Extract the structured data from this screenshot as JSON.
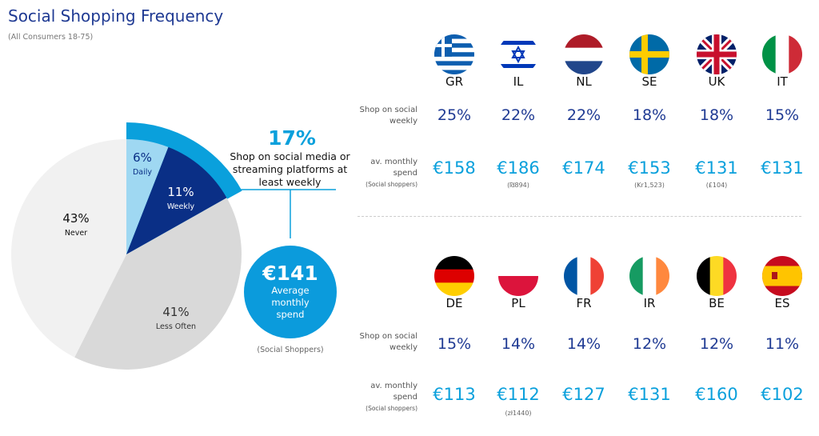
{
  "header": {
    "title": "Social Shopping Frequency",
    "subtitle": "(All Consumers 18-75)"
  },
  "chart_data": {
    "type": "pie",
    "title": "Social Shopping Frequency",
    "slices": [
      {
        "label": "Daily",
        "value": 6,
        "text": "6%",
        "color": "#9fd8f2"
      },
      {
        "label": "Weekly",
        "value": 11,
        "text": "11%",
        "color": "#0a2f86"
      },
      {
        "label": "Less Often",
        "value": 41,
        "text": "41%",
        "color": "#d9d9d9"
      },
      {
        "label": "Never",
        "value": 43,
        "text": "43%",
        "color": "#f1f1f1"
      }
    ],
    "highlight": {
      "value": 17,
      "color": "#0aa0dc"
    }
  },
  "callout": {
    "pct": "17%",
    "text": "Shop on social media or streaming platforms at least weekly",
    "spend": "€141",
    "spend_label_1": "Average",
    "spend_label_2": "monthly",
    "spend_label_3": "spend",
    "spend_note": "(Social Shoppers)"
  },
  "row_labels": {
    "weekly_1": "Shop on social",
    "weekly_2": "weekly",
    "spend_1": "av. monthly",
    "spend_2": "spend",
    "spend_note": "(Social shoppers)"
  },
  "countries": [
    {
      "code": "GR",
      "weekly": "25%",
      "spend": "€158",
      "local": ""
    },
    {
      "code": "IL",
      "weekly": "22%",
      "spend": "€186",
      "local": "(₪894)"
    },
    {
      "code": "NL",
      "weekly": "22%",
      "spend": "€174",
      "local": ""
    },
    {
      "code": "SE",
      "weekly": "18%",
      "spend": "€153",
      "local": "(Kr1,523)"
    },
    {
      "code": "UK",
      "weekly": "18%",
      "spend": "€131",
      "local": "(£104)"
    },
    {
      "code": "IT",
      "weekly": "15%",
      "spend": "€131",
      "local": ""
    },
    {
      "code": "DE",
      "weekly": "15%",
      "spend": "€113",
      "local": ""
    },
    {
      "code": "PL",
      "weekly": "14%",
      "spend": "€112",
      "local": "(zł1440)"
    },
    {
      "code": "FR",
      "weekly": "14%",
      "spend": "€127",
      "local": ""
    },
    {
      "code": "IR",
      "weekly": "12%",
      "spend": "€131",
      "local": ""
    },
    {
      "code": "BE",
      "weekly": "12%",
      "spend": "€160",
      "local": ""
    },
    {
      "code": "ES",
      "weekly": "11%",
      "spend": "€102",
      "local": ""
    }
  ]
}
